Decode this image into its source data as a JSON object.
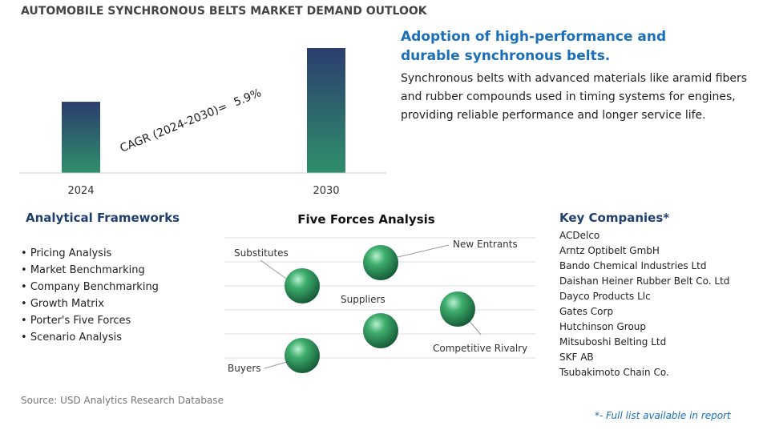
{
  "header": {
    "title": "AUTOMOBILE SYNCHRONOUS BELTS MARKET DEMAND OUTLOOK"
  },
  "chart_data": {
    "type": "bar",
    "categories": [
      "2024",
      "2030"
    ],
    "values": [
      57,
      100
    ],
    "ylim": [
      0,
      100
    ],
    "annotation": "CAGR (2024-2030)=",
    "cagr": "5.9%"
  },
  "highlight": {
    "title": "Adoption of high-performance and durable synchronous belts.",
    "text": "Synchronous belts with advanced materials like aramid fibers and rubber compounds used in timing systems for engines, providing reliable performance and longer service life."
  },
  "frameworks": {
    "title": "Analytical Frameworks",
    "items": [
      "Pricing Analysis",
      "Market Benchmarking",
      "Company Benchmarking",
      "Growth Matrix",
      "Porter's Five Forces",
      "Scenario Analysis"
    ]
  },
  "five_forces": {
    "title": "Five Forces Analysis",
    "forces": [
      "Substitutes",
      "New Entrants",
      "Suppliers",
      "Competitive Rivalry",
      "Buyers"
    ]
  },
  "companies": {
    "title": "Key Companies*",
    "items": [
      "ACDelco",
      "Arntz Optibelt GmbH",
      "Bando Chemical Industries Ltd",
      "Daishan Heiner Rubber Belt Co. Ltd",
      "Dayco Products Llc",
      "Gates Corp",
      "Hutchinson Group",
      "Mitsuboshi Belting Ltd",
      "SKF AB",
      "Tsubakimoto Chain Co."
    ]
  },
  "footer": {
    "source": "Source: USD Analytics Research Database",
    "note": "*- Full list available in report"
  }
}
